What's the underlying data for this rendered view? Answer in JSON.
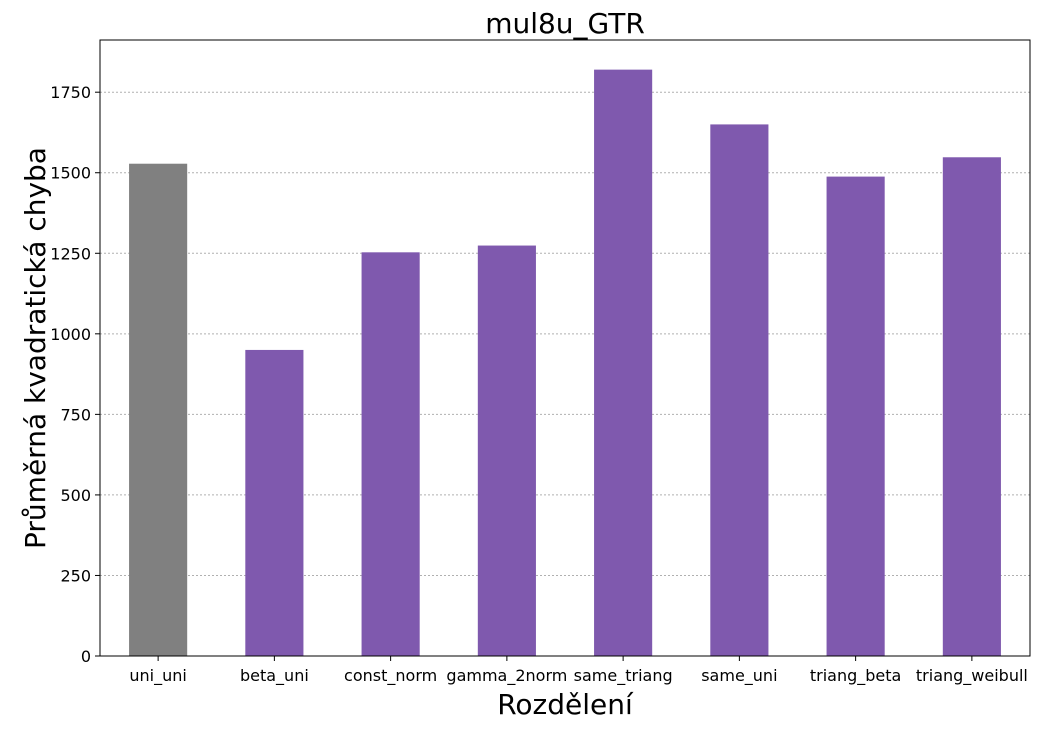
{
  "chart_data": {
    "type": "bar",
    "title": "mul8u_GTR",
    "xlabel": "Rozdělení",
    "ylabel": "Průměrná kvadratická chyba",
    "categories": [
      "uni_uni",
      "beta_uni",
      "const_norm",
      "gamma_2norm",
      "same_triang",
      "same_uni",
      "triang_beta",
      "triang_weibull"
    ],
    "values": [
      1528,
      950,
      1253,
      1274,
      1820,
      1650,
      1488,
      1548
    ],
    "colors": [
      "#808080",
      "#7f59ae",
      "#7f59ae",
      "#7f59ae",
      "#7f59ae",
      "#7f59ae",
      "#7f59ae",
      "#7f59ae"
    ],
    "ylim": [
      0,
      1912
    ],
    "yticks": [
      0,
      250,
      500,
      750,
      1000,
      1250,
      1500,
      1750
    ],
    "grid": "y-dotted",
    "legend": "none"
  }
}
